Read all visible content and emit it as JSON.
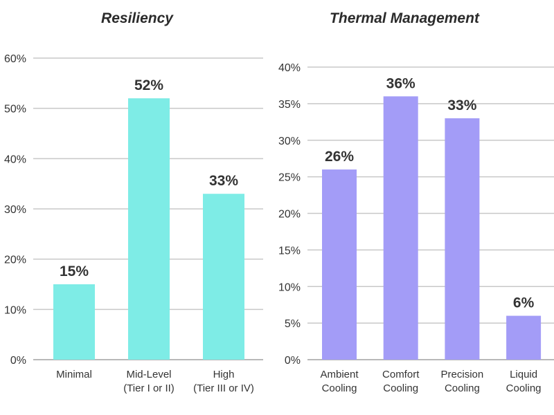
{
  "chart_data": [
    {
      "type": "bar",
      "title": "Resiliency",
      "categories": [
        [
          "Minimal"
        ],
        [
          "Mid-Level",
          "(Tier I or II)"
        ],
        [
          "High",
          "(Tier III or IV)"
        ]
      ],
      "values": [
        15,
        52,
        33
      ],
      "value_labels": [
        "15%",
        "52%",
        "33%"
      ],
      "ylim": [
        0,
        60
      ],
      "yticks": [
        0,
        10,
        20,
        30,
        40,
        50,
        60
      ],
      "ytick_labels": [
        "0%",
        "10%",
        "20%",
        "30%",
        "40%",
        "50%",
        "60%"
      ],
      "grid": true,
      "xlabel": "",
      "ylabel": "",
      "color": "#7eece6"
    },
    {
      "type": "bar",
      "title": "Thermal Management",
      "categories": [
        [
          "Ambient",
          "Cooling"
        ],
        [
          "Comfort",
          "Cooling"
        ],
        [
          "Precision",
          "Cooling"
        ],
        [
          "Liquid",
          "Cooling"
        ]
      ],
      "values": [
        26,
        36,
        33,
        6
      ],
      "value_labels": [
        "26%",
        "36%",
        "33%",
        "6%"
      ],
      "ylim": [
        0,
        40
      ],
      "yticks": [
        0,
        5,
        10,
        15,
        20,
        25,
        30,
        35,
        40
      ],
      "ytick_labels": [
        "0%",
        "5%",
        "10%",
        "15%",
        "20%",
        "25%",
        "30%",
        "35%",
        "40%"
      ],
      "grid": true,
      "xlabel": "",
      "ylabel": "",
      "color": "#a39cf7"
    }
  ]
}
